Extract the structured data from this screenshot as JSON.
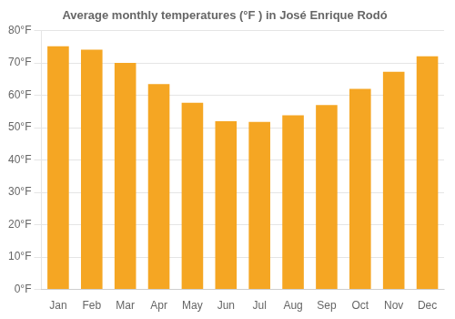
{
  "chart_data": {
    "type": "bar",
    "title": "Average monthly temperatures (°F ) in José Enrique Rodó",
    "categories": [
      "Jan",
      "Feb",
      "Mar",
      "Apr",
      "May",
      "Jun",
      "Jul",
      "Aug",
      "Sep",
      "Oct",
      "Nov",
      "Dec"
    ],
    "values": [
      75.2,
      74.1,
      70.0,
      63.5,
      57.7,
      52.0,
      51.8,
      53.8,
      57.0,
      62.0,
      67.3,
      72.1
    ],
    "color": "#F5A623",
    "ylim": [
      0,
      80
    ],
    "yticks": [
      {
        "value": 0,
        "label": "0°F"
      },
      {
        "value": 10,
        "label": "10°F"
      },
      {
        "value": 20,
        "label": "20°F"
      },
      {
        "value": 30,
        "label": "30°F"
      },
      {
        "value": 40,
        "label": "40°F"
      },
      {
        "value": 50,
        "label": "50°F"
      },
      {
        "value": 60,
        "label": "60°F"
      },
      {
        "value": 70,
        "label": "70°F"
      },
      {
        "value": 80,
        "label": "80°F"
      }
    ],
    "grid": true
  }
}
